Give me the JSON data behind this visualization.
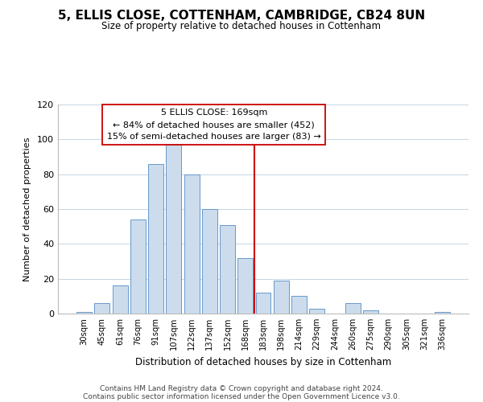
{
  "title": "5, ELLIS CLOSE, COTTENHAM, CAMBRIDGE, CB24 8UN",
  "subtitle": "Size of property relative to detached houses in Cottenham",
  "xlabel": "Distribution of detached houses by size in Cottenham",
  "ylabel": "Number of detached properties",
  "bar_labels": [
    "30sqm",
    "45sqm",
    "61sqm",
    "76sqm",
    "91sqm",
    "107sqm",
    "122sqm",
    "137sqm",
    "152sqm",
    "168sqm",
    "183sqm",
    "198sqm",
    "214sqm",
    "229sqm",
    "244sqm",
    "260sqm",
    "275sqm",
    "290sqm",
    "305sqm",
    "321sqm",
    "336sqm"
  ],
  "bar_heights": [
    1,
    6,
    16,
    54,
    86,
    97,
    80,
    60,
    51,
    32,
    12,
    19,
    10,
    3,
    0,
    6,
    2,
    0,
    0,
    0,
    1
  ],
  "bar_color": "#ccdcec",
  "bar_edge_color": "#6699cc",
  "vline_x_index": 9,
  "vline_color": "#cc0000",
  "annotation_title": "5 ELLIS CLOSE: 169sqm",
  "annotation_line1": "← 84% of detached houses are smaller (452)",
  "annotation_line2": "15% of semi-detached houses are larger (83) →",
  "annotation_box_color": "#ffffff",
  "annotation_box_edge": "#cc0000",
  "ylim": [
    0,
    120
  ],
  "yticks": [
    0,
    20,
    40,
    60,
    80,
    100,
    120
  ],
  "footer1": "Contains HM Land Registry data © Crown copyright and database right 2024.",
  "footer2": "Contains public sector information licensed under the Open Government Licence v3.0."
}
